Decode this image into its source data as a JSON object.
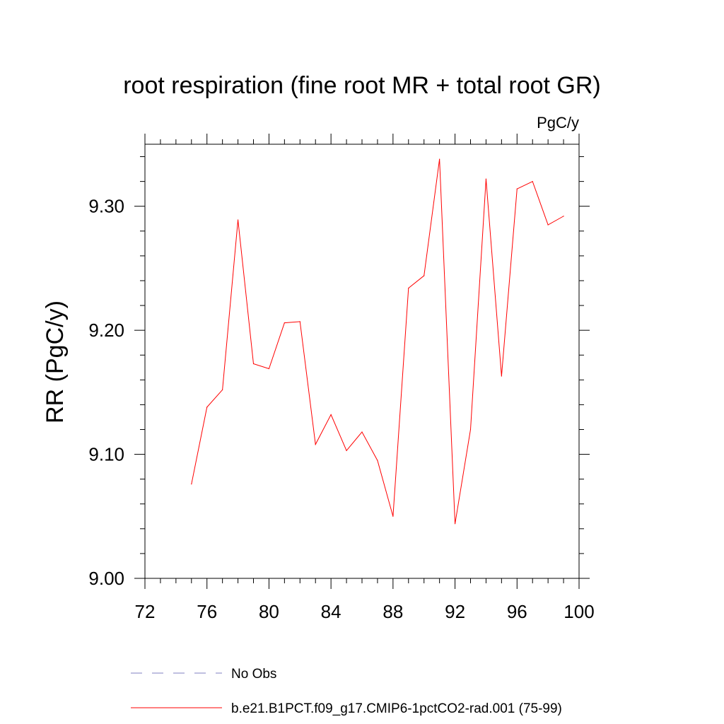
{
  "chart_data": {
    "type": "line",
    "title": "root respiration (fine root MR + total root GR)",
    "units": "PgC/y",
    "ylabel": "RR  (PgC/y)",
    "xlim": [
      72,
      100
    ],
    "ylim": [
      9.0,
      9.35
    ],
    "x_ticks": [
      "72",
      "76",
      "80",
      "84",
      "88",
      "92",
      "96",
      "100"
    ],
    "y_ticks": [
      "9.00",
      "9.10",
      "9.20",
      "9.30"
    ],
    "series": [
      {
        "name": "b.e21.B1PCT.f09_g17.CMIP6-1pctCO2-rad.001 (75-99)",
        "color": "#ff0000",
        "x": [
          75,
          76,
          77,
          78,
          79,
          80,
          81,
          82,
          83,
          84,
          85,
          86,
          87,
          88,
          89,
          90,
          91,
          92,
          93,
          94,
          95,
          96,
          97,
          98,
          99
        ],
        "values": [
          9.076,
          9.138,
          9.152,
          9.289,
          9.173,
          9.169,
          9.206,
          9.207,
          9.108,
          9.132,
          9.103,
          9.118,
          9.095,
          9.05,
          9.234,
          9.244,
          9.338,
          9.044,
          9.12,
          9.322,
          9.163,
          9.314,
          9.32,
          9.285,
          9.292
        ]
      }
    ],
    "legend": [
      {
        "label": "No Obs",
        "style": "dashed",
        "color": "#8080c0"
      },
      {
        "label": "b.e21.B1PCT.f09_g17.CMIP6-1pctCO2-rad.001 (75-99)",
        "style": "solid",
        "color": "#ff0000"
      }
    ],
    "legend_position": "bottom",
    "grid": false
  }
}
